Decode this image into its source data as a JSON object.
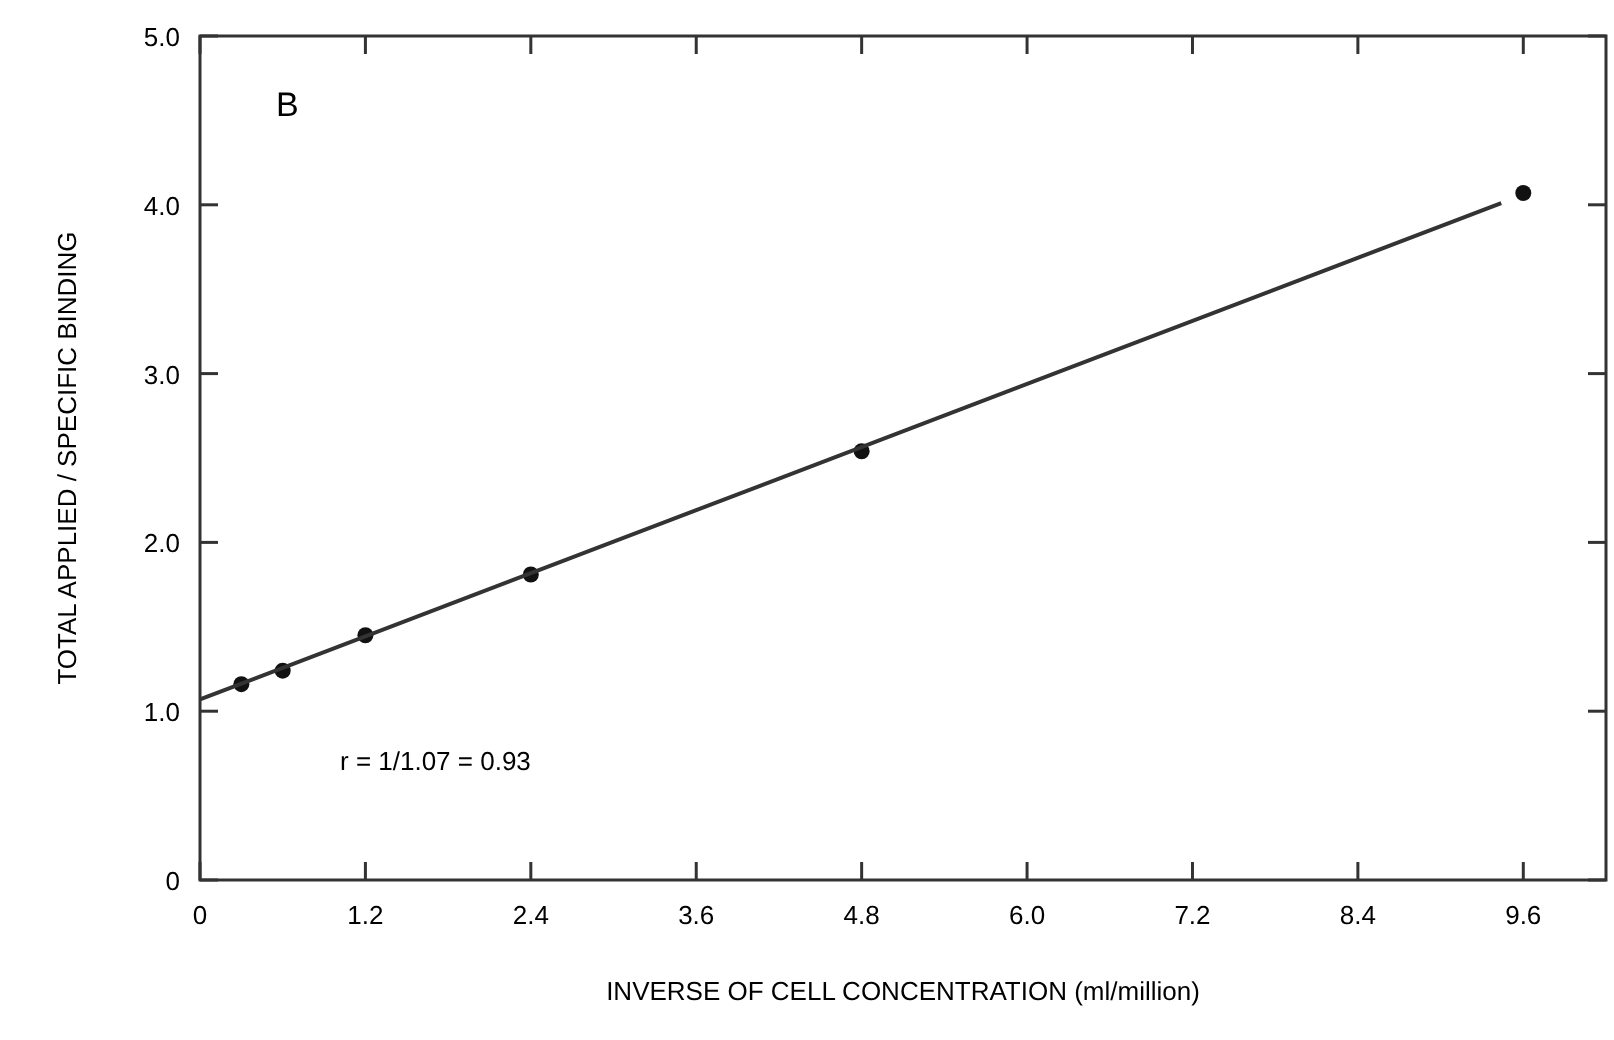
{
  "chart_data": {
    "type": "scatter",
    "xlabel": "INVERSE OF CELL CONCENTRATION (ml/million)",
    "ylabel": "TOTAL APPLIED / SPECIFIC BINDING",
    "xlim": [
      0,
      10.2
    ],
    "ylim": [
      0,
      5.0
    ],
    "xticks": [
      0,
      1.2,
      2.4,
      3.6,
      4.8,
      {
        "value": 6,
        "label": "6.0"
      },
      7.2,
      8.4,
      9.6
    ],
    "yticks": [
      0,
      {
        "value": 1,
        "label": "1.0"
      },
      {
        "value": 2,
        "label": "2.0"
      },
      {
        "value": 3,
        "label": "3.0"
      },
      {
        "value": 4,
        "label": "4.0"
      },
      {
        "value": 5,
        "label": "5.0"
      }
    ],
    "grid": false,
    "series": [
      {
        "marker": "circle",
        "color": "#111111",
        "x": [
          0.3,
          0.6,
          1.2,
          2.4,
          4.8,
          9.6
        ],
        "values": [
          1.16,
          1.24,
          1.45,
          1.81,
          2.54,
          4.07
        ]
      },
      {
        "type": "line",
        "color": "#333333",
        "x": [
          0,
          9.44
        ],
        "values": [
          1.07,
          4.01
        ]
      }
    ],
    "annotations": [
      "B",
      "r = 1/1.07 = 0.93"
    ]
  }
}
